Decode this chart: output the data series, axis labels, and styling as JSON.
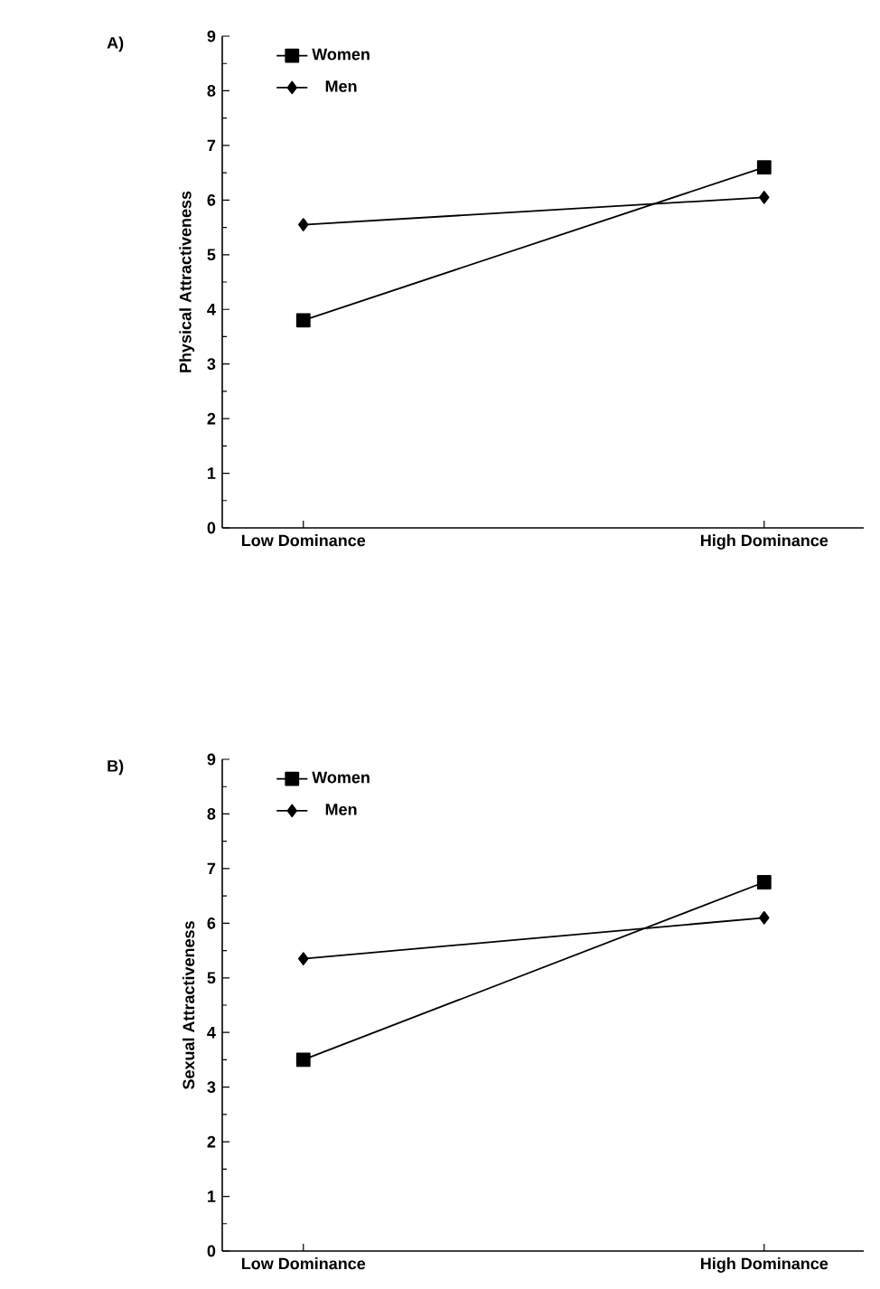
{
  "chart_data": [
    {
      "type": "line",
      "title": "A)",
      "ylabel": "Physical Attractiveness",
      "categories": [
        "Low Dominance",
        "High Dominance"
      ],
      "ylim": [
        0,
        9
      ],
      "yticks": [
        0,
        1,
        2,
        3,
        4,
        5,
        6,
        7,
        8,
        9
      ],
      "legend": "top left",
      "series": [
        {
          "name": "Women",
          "color": "#000000",
          "marker": "square",
          "values": [
            3.8,
            6.6
          ]
        },
        {
          "name": "Men",
          "color": "#000000",
          "marker": "diamond",
          "values": [
            5.55,
            6.05
          ]
        }
      ]
    },
    {
      "type": "line",
      "title": "B)",
      "ylabel": "Sexual Attractiveness",
      "categories": [
        "Low Dominance",
        "High Dominance"
      ],
      "ylim": [
        0,
        9
      ],
      "yticks": [
        0,
        1,
        2,
        3,
        4,
        5,
        6,
        7,
        8,
        9
      ],
      "legend": "top left",
      "series": [
        {
          "name": "Women",
          "color": "#000000",
          "marker": "square",
          "values": [
            3.5,
            6.75
          ]
        },
        {
          "name": "Men",
          "color": "#000000",
          "marker": "diamond",
          "values": [
            5.35,
            6.1
          ]
        }
      ]
    }
  ]
}
